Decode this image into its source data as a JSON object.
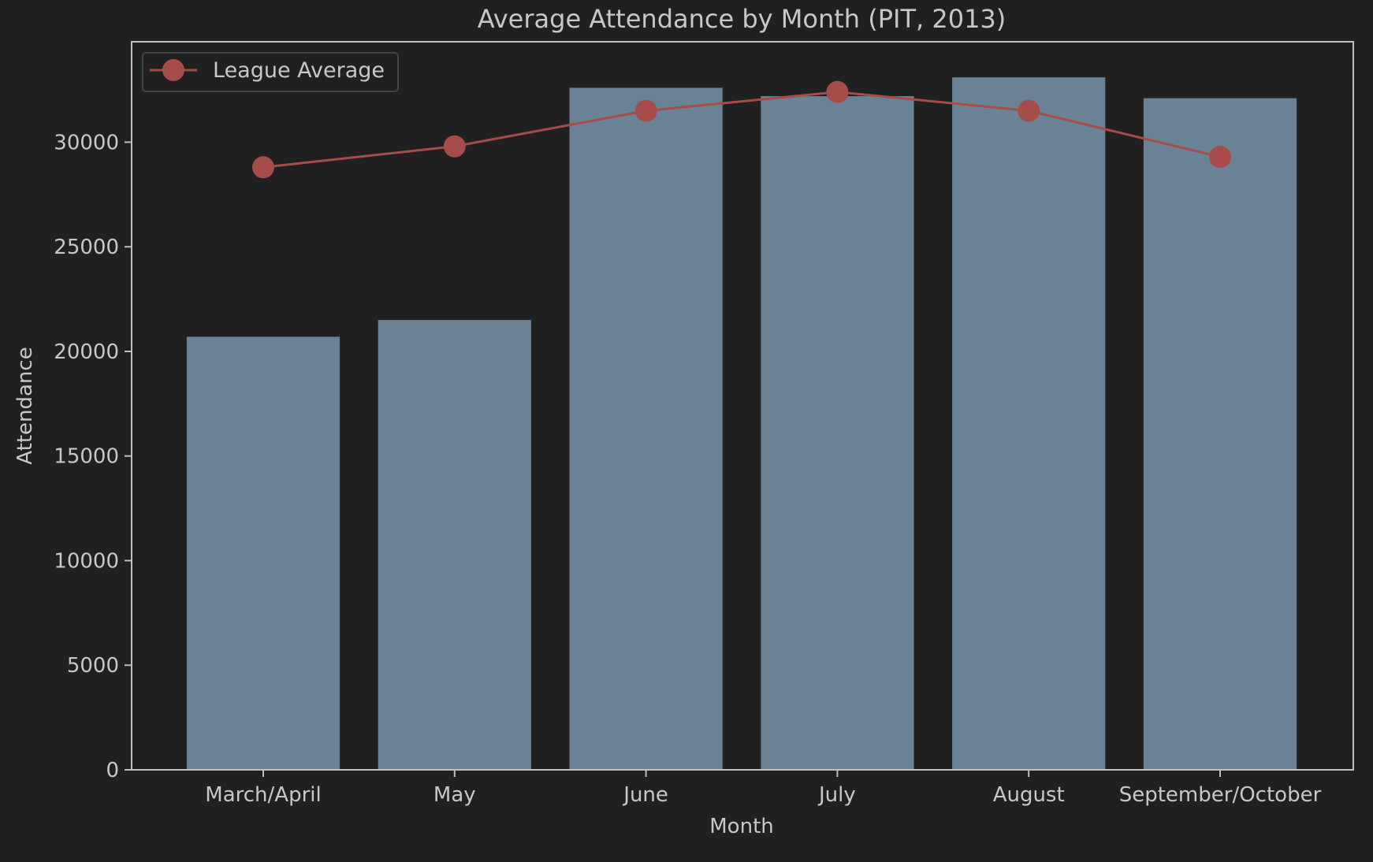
{
  "colors": {
    "background": "#202020",
    "bar": "#6a8296",
    "line": "#a64c4a",
    "text": "#c8c8c8",
    "axis": "#c0c0c0",
    "legend_border": "#444444"
  },
  "chart_data": {
    "type": "bar",
    "title": "Average Attendance by Month (PIT, 2013)",
    "xlabel": "Month",
    "ylabel": "Attendance",
    "categories": [
      "March/April",
      "May",
      "June",
      "July",
      "August",
      "September/October"
    ],
    "series": [
      {
        "type": "bar",
        "values": [
          20700,
          21500,
          32600,
          32200,
          33100,
          32100
        ]
      },
      {
        "type": "line",
        "name": "League Average",
        "marker": "circle",
        "values": [
          28800,
          29800,
          31500,
          32400,
          31500,
          29300
        ]
      }
    ],
    "ylim": [
      0,
      34800
    ],
    "yticks": [
      0,
      5000,
      10000,
      15000,
      20000,
      25000,
      30000
    ],
    "grid": false,
    "legend": {
      "position": "top-left"
    }
  }
}
